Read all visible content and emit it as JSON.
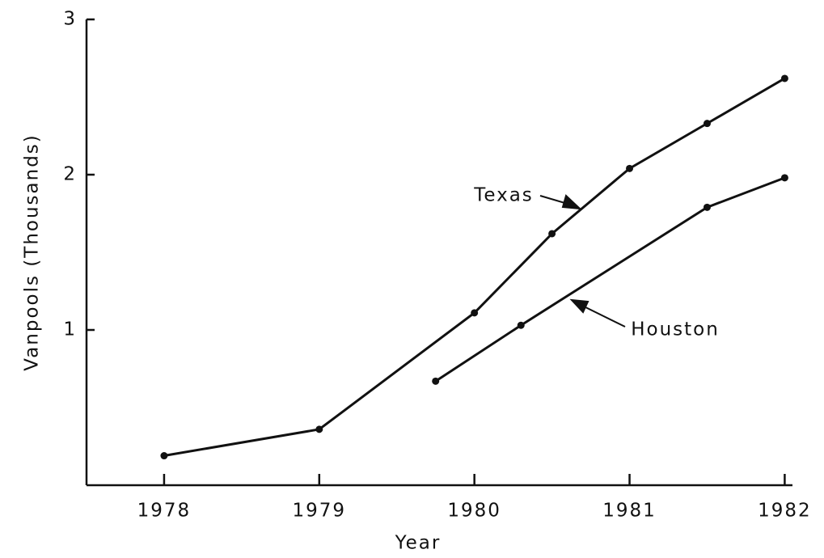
{
  "chart_data": {
    "type": "line",
    "ylabel": "Vanpools (Thousands)",
    "xlabel": "Year",
    "xlim": [
      1977.5,
      1982.05
    ],
    "xticks": [
      1978,
      1979,
      1980,
      1981,
      1982
    ],
    "ylim": [
      0,
      3
    ],
    "yticks": [
      1,
      2,
      3
    ],
    "series": [
      {
        "name": "Texas",
        "color": "#111111",
        "x": [
          1978,
          1979,
          1980,
          1980.5,
          1981,
          1981.5,
          1982
        ],
        "values": [
          0.19,
          0.36,
          1.11,
          1.62,
          2.04,
          2.33,
          2.62
        ]
      },
      {
        "name": "Houston",
        "color": "#111111",
        "x": [
          1979.75,
          1980.3,
          1981.5,
          1982
        ],
        "values": [
          0.67,
          1.03,
          1.79,
          1.98
        ]
      }
    ]
  }
}
